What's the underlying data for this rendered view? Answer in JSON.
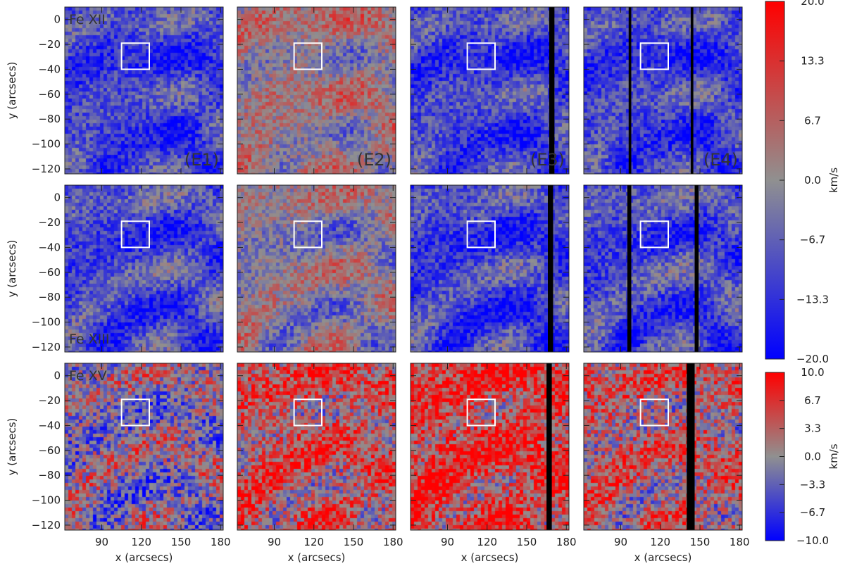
{
  "chart_data": {
    "type": "heatmap",
    "xlabel": "x (arcsecs)",
    "ylabel": "y (arcsecs)",
    "x_ticks": [
      90,
      120,
      150,
      180
    ],
    "y_ticks": [
      0,
      -20,
      -40,
      -60,
      -80,
      -100,
      -120
    ],
    "xlim": [
      62,
      182
    ],
    "ylim": [
      -124,
      10
    ],
    "grid": false,
    "columns": [
      "(E1)",
      "(E2)",
      "(E3)",
      "(E4)"
    ],
    "rows": [
      {
        "ion": "Fe XII",
        "colorbar_group": 0
      },
      {
        "ion": "Fe XIII",
        "colorbar_group": 0
      },
      {
        "ion": "Fe XV",
        "colorbar_group": 1
      }
    ],
    "colorbars": [
      {
        "unit": "km/s",
        "range": [
          -20.0,
          20.0
        ],
        "ticks": [
          "20.0",
          "13.3",
          "6.7",
          "0.0",
          "-6.7",
          "-13.3",
          "-20.0"
        ],
        "low_color": "#0000ff",
        "mid_color": "#909090",
        "high_color": "#ff0000"
      },
      {
        "unit": "km/s",
        "range": [
          -10.0,
          10.0
        ],
        "ticks": [
          "10.0",
          "6.7",
          "3.3",
          "0.0",
          "-3.3",
          "-6.7",
          "-10.0"
        ],
        "low_color": "#0000ff",
        "mid_color": "#909090",
        "high_color": "#ff0000"
      }
    ],
    "highlight_box": {
      "x": [
        105,
        126
      ],
      "y": [
        -40,
        -19
      ],
      "color": "#ffffff"
    },
    "panel_bias": [
      [
        -0.55,
        0.05,
        -0.55,
        -0.55
      ],
      [
        -0.5,
        -0.05,
        -0.55,
        -0.5
      ],
      [
        -0.1,
        0.35,
        0.55,
        0.25
      ]
    ],
    "data_gaps": [
      [
        [],
        [],
        [
          [
            167,
            171
          ]
        ],
        [
          [
            96,
            98
          ],
          [
            143,
            145
          ]
        ]
      ],
      [
        [],
        [],
        [
          [
            166,
            170
          ]
        ],
        [
          [
            95,
            98
          ],
          [
            146,
            149
          ]
        ]
      ],
      [
        [],
        [],
        [
          [
            165,
            169
          ]
        ],
        [
          [
            140,
            146
          ]
        ]
      ]
    ]
  }
}
